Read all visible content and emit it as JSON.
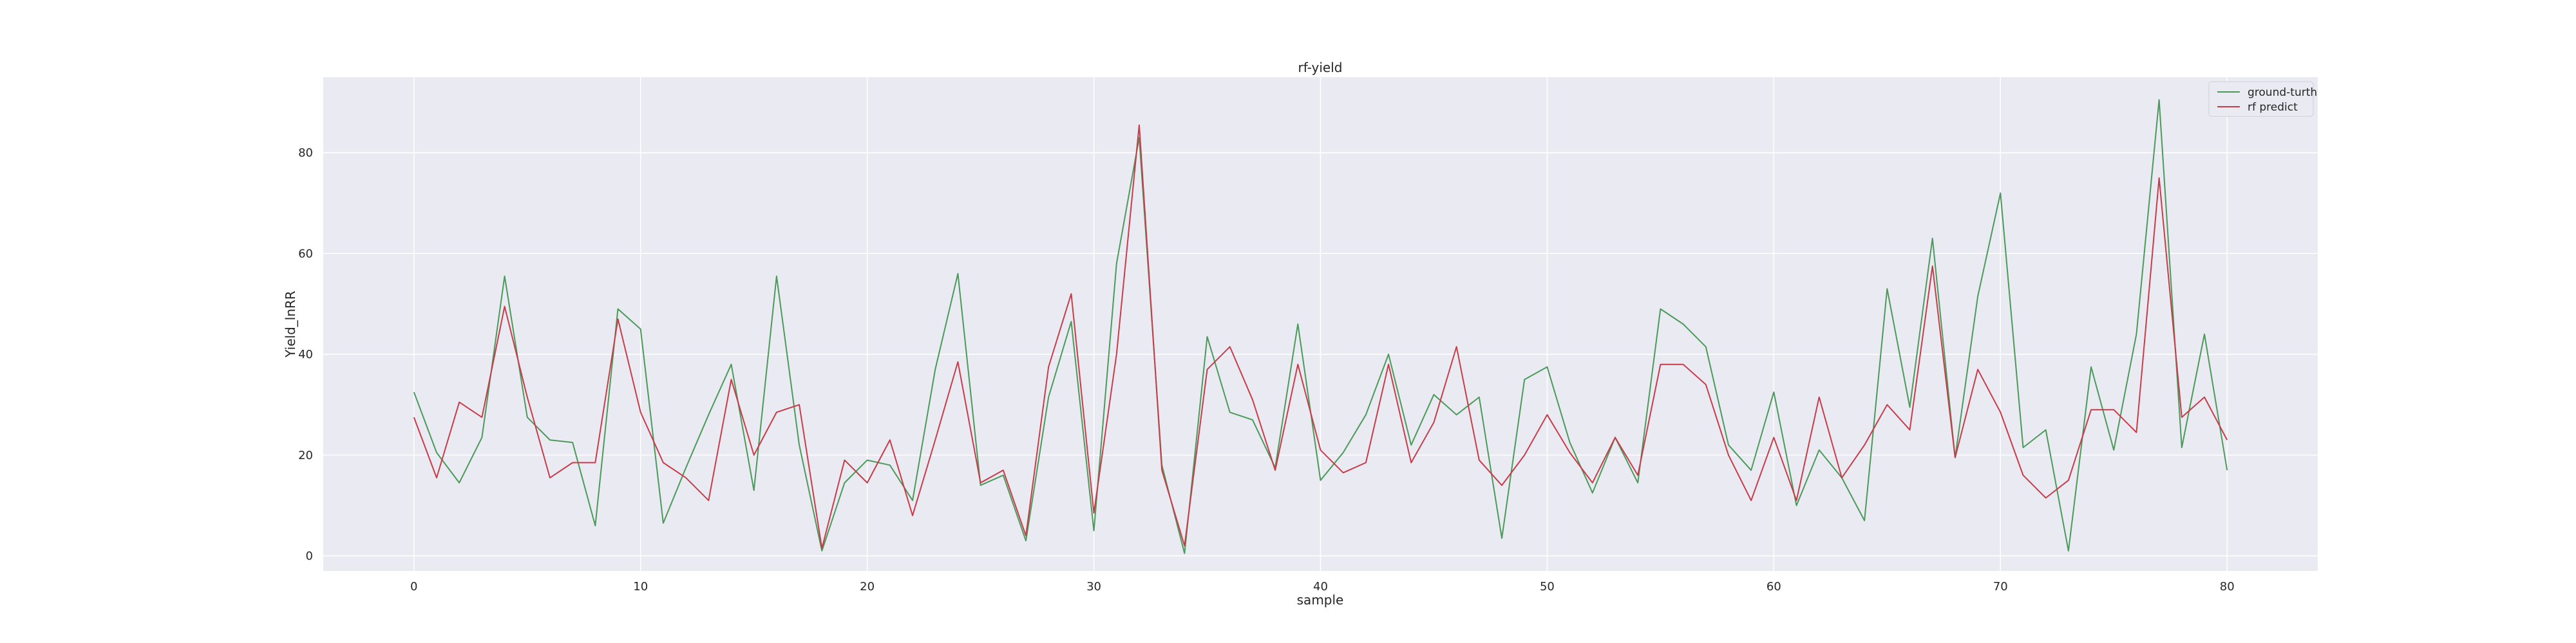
{
  "chart_data": {
    "type": "line",
    "title": "rf-yield",
    "xlabel": "sample",
    "ylabel": "Yield_lnRR",
    "xlim": [
      -4,
      84
    ],
    "ylim": [
      -3,
      95
    ],
    "x_ticks": [
      0,
      10,
      20,
      30,
      40,
      50,
      60,
      70,
      80
    ],
    "y_ticks": [
      0,
      20,
      40,
      60,
      80
    ],
    "grid": true,
    "legend_position": "top-right",
    "x": [
      0,
      1,
      2,
      3,
      4,
      5,
      6,
      7,
      8,
      9,
      10,
      11,
      12,
      13,
      14,
      15,
      16,
      17,
      18,
      19,
      20,
      21,
      22,
      23,
      24,
      25,
      26,
      27,
      28,
      29,
      30,
      31,
      32,
      33,
      34,
      35,
      36,
      37,
      38,
      39,
      40,
      41,
      42,
      43,
      44,
      45,
      46,
      47,
      48,
      49,
      50,
      51,
      52,
      53,
      54,
      55,
      56,
      57,
      58,
      59,
      60,
      61,
      62,
      63,
      64,
      65,
      66,
      67,
      68,
      69,
      70,
      71,
      72,
      73,
      74,
      75,
      76,
      77,
      78,
      79,
      80
    ],
    "series": [
      {
        "name": "ground-turth",
        "color": "#4a9a5a",
        "values": [
          32.5,
          20.5,
          14.5,
          23.5,
          55.5,
          27.5,
          23,
          22.5,
          6,
          49,
          45,
          6.5,
          17.5,
          28,
          38,
          13,
          55.5,
          22,
          1,
          14.5,
          19,
          18,
          11,
          37,
          56,
          14,
          16,
          3,
          31.5,
          46.5,
          5,
          58,
          83,
          18,
          0.5,
          43.5,
          28.5,
          27,
          17.5,
          46,
          15,
          20.5,
          28,
          40,
          22,
          32,
          28,
          31.5,
          3.5,
          35,
          37.5,
          22.5,
          12.5,
          23.5,
          14.5,
          49,
          46,
          41.5,
          22,
          17,
          32.5,
          10,
          21,
          15.5,
          7,
          53,
          29.5,
          63,
          19.5,
          51.5,
          72,
          21.5,
          25,
          1,
          37.5,
          21,
          44,
          90.5,
          21.5,
          44,
          17
        ]
      },
      {
        "name": "rf predict",
        "color": "#c83c4a",
        "values": [
          27.5,
          15.5,
          30.5,
          27.5,
          49.5,
          31.5,
          15.5,
          18.5,
          18.5,
          47,
          28.5,
          18.5,
          15.5,
          11,
          35,
          20,
          28.5,
          30,
          1.5,
          19,
          14.5,
          23,
          8,
          23,
          38.5,
          14.5,
          17,
          4,
          37.5,
          52,
          8.5,
          40,
          85.5,
          17,
          2,
          37,
          41.5,
          31,
          17,
          38,
          21,
          16.5,
          18.5,
          38,
          18.5,
          26.5,
          41.5,
          19,
          14,
          20,
          28,
          20.5,
          14.5,
          23.5,
          16,
          38,
          38,
          34,
          20,
          11,
          23.5,
          11,
          31.5,
          15.5,
          22,
          30,
          25,
          57.5,
          19.5,
          37,
          28.5,
          16,
          11.5,
          15,
          29,
          29,
          24.5,
          75,
          27.5,
          31.5,
          23
        ]
      }
    ]
  }
}
